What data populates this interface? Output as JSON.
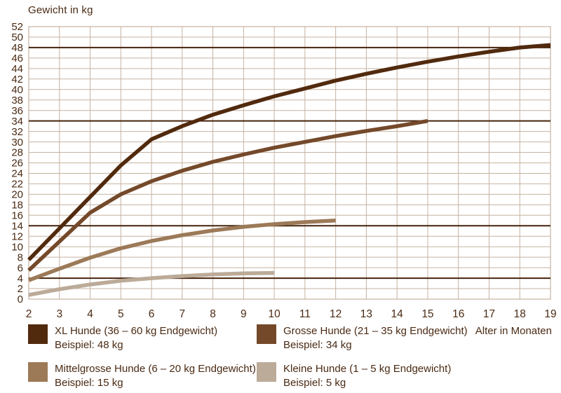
{
  "chart_data": {
    "type": "line",
    "ylabel": "Gewicht in kg",
    "xlabel": "Alter in Monaten",
    "xlim": [
      2,
      19
    ],
    "ylim": [
      0,
      52
    ],
    "x_ticks": [
      2,
      3,
      4,
      5,
      6,
      7,
      8,
      9,
      10,
      11,
      12,
      13,
      14,
      15,
      16,
      17,
      18,
      19
    ],
    "y_ticks": [
      0,
      2,
      4,
      6,
      8,
      10,
      12,
      14,
      16,
      18,
      20,
      22,
      24,
      26,
      28,
      30,
      32,
      34,
      36,
      38,
      40,
      42,
      44,
      46,
      48,
      50,
      52
    ],
    "grid": true,
    "legend_position": "bottom",
    "reference_lines_kg": [
      48,
      34,
      14,
      4
    ],
    "colors": {
      "grid": "#c6b2a0",
      "plot_border": "#c6b2a0",
      "reference_line": "#45230b",
      "text": "#4a2a13",
      "background": "#ffffff"
    },
    "series": [
      {
        "name": "XL Hunde (36 – 60 kg Endgewicht)",
        "example": "Beispiel: 48 kg",
        "final_weight_kg": 48,
        "color": "#512a0e",
        "points": [
          [
            2,
            7.5
          ],
          [
            3,
            13.5
          ],
          [
            4,
            19.5
          ],
          [
            5,
            25.5
          ],
          [
            6,
            30.5
          ],
          [
            7,
            33
          ],
          [
            8,
            35.2
          ],
          [
            9,
            37
          ],
          [
            10,
            38.7
          ],
          [
            11,
            40.2
          ],
          [
            12,
            41.7
          ],
          [
            13,
            43
          ],
          [
            14,
            44.2
          ],
          [
            15,
            45.3
          ],
          [
            16,
            46.3
          ],
          [
            17,
            47.2
          ],
          [
            18,
            48
          ],
          [
            19,
            48.5
          ]
        ]
      },
      {
        "name": "Grosse Hunde (21 – 35 kg Endgewicht)",
        "example": "Beispiel: 34 kg",
        "final_weight_kg": 34,
        "color": "#74492a",
        "points": [
          [
            2,
            5.5
          ],
          [
            3,
            11
          ],
          [
            4,
            16.5
          ],
          [
            5,
            20
          ],
          [
            6,
            22.5
          ],
          [
            7,
            24.5
          ],
          [
            8,
            26.2
          ],
          [
            9,
            27.6
          ],
          [
            10,
            28.9
          ],
          [
            11,
            30
          ],
          [
            12,
            31.1
          ],
          [
            13,
            32.1
          ],
          [
            14,
            33
          ],
          [
            15,
            34
          ]
        ]
      },
      {
        "name": "Mittelgrosse Hunde (6 – 20 kg Endgewicht)",
        "example": "Beispiel: 15 kg",
        "final_weight_kg": 15,
        "color": "#9c7a58",
        "points": [
          [
            2,
            3.6
          ],
          [
            3,
            5.8
          ],
          [
            4,
            7.9
          ],
          [
            5,
            9.7
          ],
          [
            6,
            11.1
          ],
          [
            7,
            12.2
          ],
          [
            8,
            13.1
          ],
          [
            9,
            13.8
          ],
          [
            10,
            14.3
          ],
          [
            11,
            14.7
          ],
          [
            12,
            15
          ]
        ]
      },
      {
        "name": "Kleine Hunde (1 – 5 kg Endgewicht)",
        "example": "Beispiel: 5 kg",
        "final_weight_kg": 5,
        "color": "#bcab99",
        "points": [
          [
            2,
            0.8
          ],
          [
            3,
            1.9
          ],
          [
            4,
            2.8
          ],
          [
            5,
            3.5
          ],
          [
            6,
            4
          ],
          [
            7,
            4.4
          ],
          [
            8,
            4.7
          ],
          [
            9,
            4.9
          ],
          [
            10,
            5
          ]
        ]
      }
    ]
  }
}
